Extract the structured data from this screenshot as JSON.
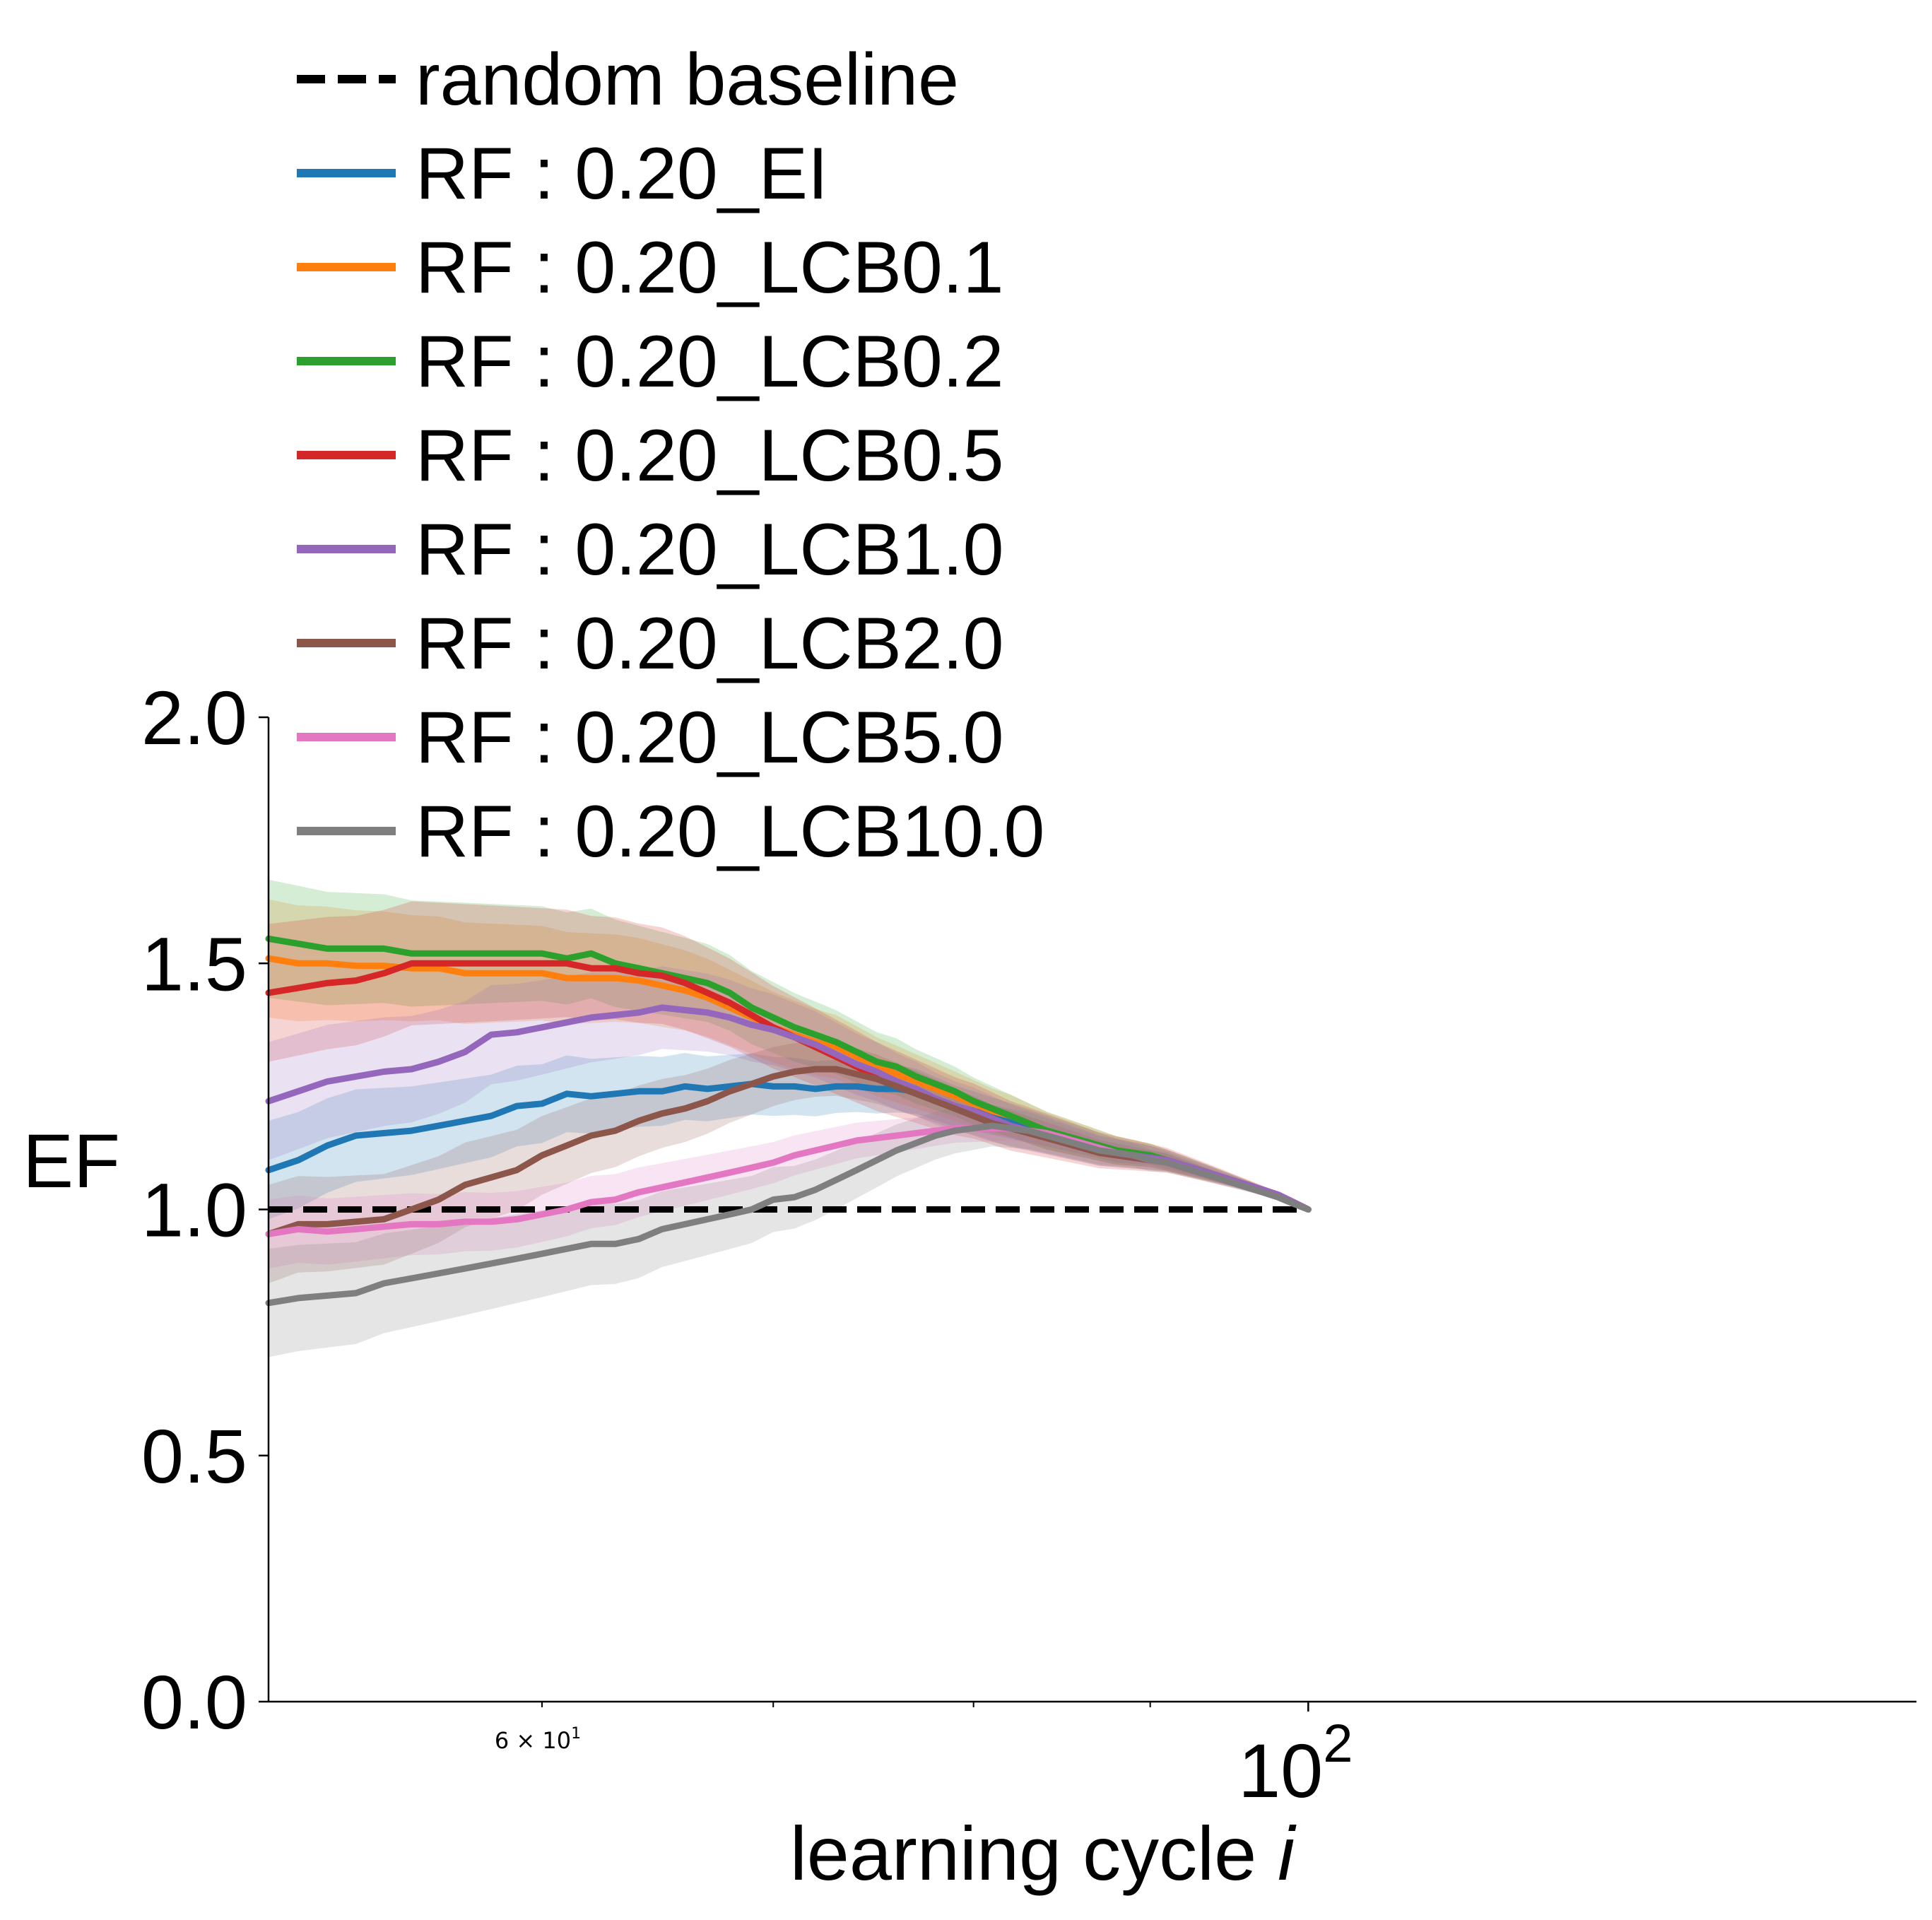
{
  "chart_data": {
    "type": "line",
    "title": "",
    "xlabel": "learning cycle",
    "xlabel_italic": "i",
    "ylabel": "EF",
    "xscale": "log",
    "xlim": [
      50,
      150
    ],
    "ylim": [
      0,
      2
    ],
    "yticks": [
      "0.0",
      "0.5",
      "1.0",
      "1.5",
      "2.0"
    ],
    "xticks_major": [
      {
        "value": 100,
        "base": "10",
        "exp": "2"
      }
    ],
    "xticks_minor": [
      {
        "value": 60,
        "label": "6 × 10",
        "exp": "1"
      },
      {
        "value": 70
      },
      {
        "value": 80
      },
      {
        "value": 90
      }
    ],
    "legend_position": "top-left",
    "grid": false,
    "x": [
      50,
      51,
      52,
      53,
      54,
      55,
      56,
      57,
      58,
      59,
      60,
      61,
      62,
      63,
      64,
      65,
      66,
      67,
      68,
      69,
      70,
      71,
      72,
      73,
      74,
      75,
      76,
      77,
      78,
      79,
      80,
      81,
      82,
      83,
      84,
      85,
      86,
      87,
      88,
      89,
      90,
      91,
      92,
      93,
      94,
      95,
      96,
      97,
      98,
      99,
      100
    ],
    "baseline": {
      "name": "random baseline",
      "value": 1.0,
      "color": "#000000",
      "style": "dashed"
    },
    "series": [
      {
        "name": "RF : 0.20_EI",
        "color": "#1f77b4",
        "values": [
          1.08,
          1.1,
          1.13,
          1.15,
          1.155,
          1.16,
          1.17,
          1.18,
          1.19,
          1.21,
          1.215,
          1.235,
          1.23,
          1.235,
          1.24,
          1.24,
          1.25,
          1.245,
          1.25,
          1.255,
          1.25,
          1.25,
          1.245,
          1.25,
          1.25,
          1.245,
          1.245,
          1.24,
          1.225,
          1.21,
          1.2,
          1.19,
          1.18,
          1.17,
          1.16,
          1.15,
          1.14,
          1.13,
          1.12,
          1.115,
          1.11,
          1.1,
          1.09,
          1.08,
          1.07,
          1.06,
          1.05,
          1.04,
          1.03,
          1.015,
          1.0
        ],
        "band": 0.1
      },
      {
        "name": "RF : 0.20_LCB0.1",
        "color": "#ff7f0e",
        "values": [
          1.51,
          1.5,
          1.5,
          1.495,
          1.495,
          1.49,
          1.49,
          1.48,
          1.48,
          1.48,
          1.48,
          1.47,
          1.47,
          1.47,
          1.465,
          1.455,
          1.445,
          1.43,
          1.41,
          1.39,
          1.37,
          1.355,
          1.34,
          1.33,
          1.31,
          1.29,
          1.275,
          1.26,
          1.245,
          1.23,
          1.215,
          1.2,
          1.19,
          1.175,
          1.16,
          1.15,
          1.14,
          1.13,
          1.12,
          1.115,
          1.11,
          1.1,
          1.09,
          1.08,
          1.07,
          1.06,
          1.05,
          1.04,
          1.03,
          1.015,
          1.0
        ],
        "band": 0.12
      },
      {
        "name": "RF : 0.20_LCB0.2",
        "color": "#2ca02c",
        "values": [
          1.55,
          1.54,
          1.53,
          1.53,
          1.53,
          1.52,
          1.52,
          1.52,
          1.52,
          1.52,
          1.52,
          1.51,
          1.52,
          1.5,
          1.49,
          1.48,
          1.47,
          1.46,
          1.44,
          1.41,
          1.39,
          1.37,
          1.355,
          1.34,
          1.32,
          1.3,
          1.29,
          1.27,
          1.255,
          1.24,
          1.22,
          1.205,
          1.19,
          1.175,
          1.16,
          1.15,
          1.14,
          1.13,
          1.12,
          1.115,
          1.11,
          1.1,
          1.09,
          1.08,
          1.07,
          1.06,
          1.05,
          1.04,
          1.03,
          1.015,
          1.0
        ],
        "band": 0.12
      },
      {
        "name": "RF : 0.20_LCB0.5",
        "color": "#d62728",
        "values": [
          1.44,
          1.45,
          1.46,
          1.465,
          1.48,
          1.5,
          1.5,
          1.5,
          1.5,
          1.5,
          1.5,
          1.5,
          1.49,
          1.49,
          1.48,
          1.475,
          1.46,
          1.44,
          1.42,
          1.395,
          1.37,
          1.35,
          1.33,
          1.31,
          1.29,
          1.27,
          1.255,
          1.24,
          1.225,
          1.21,
          1.2,
          1.185,
          1.17,
          1.16,
          1.15,
          1.14,
          1.13,
          1.12,
          1.115,
          1.11,
          1.105,
          1.1,
          1.09,
          1.08,
          1.07,
          1.06,
          1.05,
          1.04,
          1.03,
          1.015,
          1.0
        ],
        "band": 0.14
      },
      {
        "name": "RF : 0.20_LCB1.0",
        "color": "#9467bd",
        "values": [
          1.22,
          1.24,
          1.26,
          1.27,
          1.28,
          1.285,
          1.3,
          1.32,
          1.355,
          1.36,
          1.37,
          1.38,
          1.39,
          1.395,
          1.4,
          1.41,
          1.405,
          1.4,
          1.39,
          1.375,
          1.365,
          1.35,
          1.335,
          1.315,
          1.295,
          1.28,
          1.26,
          1.245,
          1.225,
          1.21,
          1.2,
          1.185,
          1.17,
          1.16,
          1.15,
          1.14,
          1.13,
          1.12,
          1.115,
          1.11,
          1.105,
          1.1,
          1.09,
          1.08,
          1.07,
          1.06,
          1.05,
          1.04,
          1.03,
          1.015,
          1.0
        ],
        "band": 0.12
      },
      {
        "name": "RF : 0.20_LCB2.0",
        "color": "#8c564b",
        "values": [
          0.95,
          0.97,
          0.97,
          0.975,
          0.98,
          1.0,
          1.02,
          1.05,
          1.065,
          1.08,
          1.11,
          1.13,
          1.15,
          1.16,
          1.18,
          1.195,
          1.205,
          1.22,
          1.24,
          1.255,
          1.27,
          1.28,
          1.285,
          1.285,
          1.275,
          1.265,
          1.25,
          1.235,
          1.22,
          1.205,
          1.19,
          1.175,
          1.165,
          1.155,
          1.145,
          1.135,
          1.125,
          1.115,
          1.11,
          1.105,
          1.1,
          1.095,
          1.085,
          1.075,
          1.065,
          1.055,
          1.045,
          1.035,
          1.025,
          1.012,
          1.0
        ],
        "band": 0.1
      },
      {
        "name": "RF : 0.20_LCB5.0",
        "color": "#e377c2",
        "values": [
          0.95,
          0.96,
          0.955,
          0.96,
          0.965,
          0.97,
          0.97,
          0.975,
          0.975,
          0.98,
          0.99,
          1.0,
          1.015,
          1.02,
          1.035,
          1.045,
          1.055,
          1.065,
          1.075,
          1.085,
          1.095,
          1.11,
          1.12,
          1.13,
          1.14,
          1.145,
          1.15,
          1.155,
          1.16,
          1.165,
          1.165,
          1.165,
          1.165,
          1.16,
          1.155,
          1.145,
          1.135,
          1.125,
          1.115,
          1.11,
          1.1,
          1.095,
          1.085,
          1.075,
          1.065,
          1.055,
          1.045,
          1.035,
          1.025,
          1.012,
          1.0
        ],
        "band": 0.07
      },
      {
        "name": "RF : 0.20_LCB10.0",
        "color": "#7f7f7f",
        "values": [
          0.81,
          0.82,
          0.825,
          0.83,
          0.85,
          0.86,
          0.87,
          0.88,
          0.89,
          0.9,
          0.91,
          0.92,
          0.93,
          0.93,
          0.94,
          0.96,
          0.97,
          0.98,
          0.99,
          1.0,
          1.02,
          1.025,
          1.04,
          1.06,
          1.08,
          1.1,
          1.12,
          1.135,
          1.15,
          1.16,
          1.165,
          1.17,
          1.165,
          1.16,
          1.15,
          1.14,
          1.13,
          1.12,
          1.115,
          1.11,
          1.1,
          1.095,
          1.085,
          1.075,
          1.065,
          1.055,
          1.045,
          1.035,
          1.025,
          1.012,
          1.0
        ],
        "band": 0.11
      }
    ]
  }
}
